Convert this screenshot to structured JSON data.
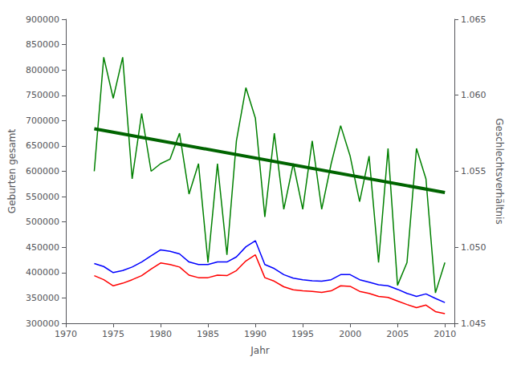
{
  "chart_data": {
    "type": "line",
    "x": [
      1973,
      1974,
      1975,
      1976,
      1977,
      1978,
      1979,
      1980,
      1981,
      1982,
      1983,
      1984,
      1985,
      1986,
      1987,
      1988,
      1989,
      1990,
      1991,
      1992,
      1993,
      1994,
      1995,
      1996,
      1997,
      1998,
      1999,
      2000,
      2001,
      2002,
      2003,
      2004,
      2005,
      2006,
      2007,
      2008,
      2009,
      2010
    ],
    "series": [
      {
        "color": "#0000FF",
        "values": [
          418000,
          412000,
          400000,
          404000,
          411000,
          421000,
          433000,
          445000,
          442000,
          437000,
          421000,
          416000,
          416000,
          421000,
          421000,
          431000,
          451000,
          463000,
          416000,
          408000,
          396000,
          389000,
          386000,
          384000,
          383000,
          386000,
          396000,
          396000,
          386000,
          381000,
          376000,
          374000,
          367000,
          359000,
          353000,
          358000,
          349000,
          341000
        ]
      },
      {
        "color": "#FF0000",
        "values": [
          394000,
          386000,
          374000,
          379000,
          386000,
          394000,
          407000,
          419000,
          416000,
          411000,
          395000,
          390000,
          390000,
          395000,
          394000,
          404000,
          423000,
          435000,
          390000,
          383000,
          372000,
          366000,
          364000,
          363000,
          361000,
          364000,
          374000,
          373000,
          363000,
          359000,
          353000,
          351000,
          344000,
          337000,
          331000,
          336000,
          323000,
          319000
        ]
      },
      {
        "color": "#008000",
        "axis": "y2",
        "values": [
          1.055,
          1.0625,
          1.0598,
          1.0625,
          1.0545,
          1.0588,
          1.055,
          1.0555,
          1.0558,
          1.0575,
          1.0535,
          1.0555,
          1.049,
          1.0555,
          1.0495,
          1.057,
          1.0605,
          1.0585,
          1.052,
          1.0575,
          1.0525,
          1.0555,
          1.0525,
          1.057,
          1.0525,
          1.0555,
          1.058,
          1.056,
          1.053,
          1.056,
          1.049,
          1.0565,
          1.0475,
          1.049,
          1.0565,
          1.0545,
          1.047,
          1.049
        ]
      },
      {
        "color": "#006400",
        "axis": "y2",
        "x": [
          1973,
          2010
        ],
        "values": [
          1.0578,
          1.0536
        ]
      }
    ],
    "xlabel": "Jahr",
    "ylabel": "Geburten gesamt",
    "y2label": "Geschlechtsverhältnis",
    "xlim": [
      1970,
      2011
    ],
    "xticks": [
      1970,
      1975,
      1980,
      1985,
      1990,
      1995,
      2000,
      2005,
      2010
    ],
    "ylim": [
      300000,
      900000
    ],
    "yticks": [
      300000,
      350000,
      400000,
      450000,
      500000,
      550000,
      600000,
      650000,
      700000,
      750000,
      800000,
      850000,
      900000
    ],
    "y2lim": [
      1.045,
      1.065
    ],
    "y2ticks": [
      1.045,
      {
        "value": 1.05,
        "label": "1.050"
      },
      1.055,
      {
        "value": 1.06,
        "label": "1.060"
      },
      1.065
    ],
    "grid": false
  }
}
